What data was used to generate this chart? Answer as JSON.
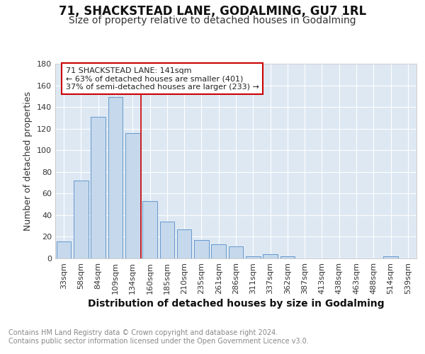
{
  "title": "71, SHACKSTEAD LANE, GODALMING, GU7 1RL",
  "subtitle": "Size of property relative to detached houses in Godalming",
  "xlabel": "Distribution of detached houses by size in Godalming",
  "ylabel": "Number of detached properties",
  "bar_labels": [
    "33sqm",
    "58sqm",
    "84sqm",
    "109sqm",
    "134sqm",
    "160sqm",
    "185sqm",
    "210sqm",
    "235sqm",
    "261sqm",
    "286sqm",
    "311sqm",
    "337sqm",
    "362sqm",
    "387sqm",
    "413sqm",
    "438sqm",
    "463sqm",
    "488sqm",
    "514sqm",
    "539sqm"
  ],
  "bar_values": [
    16,
    72,
    131,
    149,
    116,
    53,
    34,
    27,
    17,
    13,
    11,
    2,
    4,
    2,
    0,
    0,
    0,
    0,
    0,
    2,
    0
  ],
  "bar_color": "#c5d8ec",
  "bar_edge_color": "#6699cc",
  "figure_bg_color": "#ffffff",
  "plot_bg_color": "#dde8f3",
  "red_line_x": 4.5,
  "annotation_text": "71 SHACKSTEAD LANE: 141sqm\n← 63% of detached houses are smaller (401)\n37% of semi-detached houses are larger (233) →",
  "annotation_box_facecolor": "#ffffff",
  "annotation_box_edgecolor": "#cc0000",
  "ylim": [
    0,
    180
  ],
  "yticks": [
    0,
    20,
    40,
    60,
    80,
    100,
    120,
    140,
    160,
    180
  ],
  "footer_text": "Contains HM Land Registry data © Crown copyright and database right 2024.\nContains public sector information licensed under the Open Government Licence v3.0.",
  "title_fontsize": 12,
  "subtitle_fontsize": 10,
  "annotation_fontsize": 8,
  "ylabel_fontsize": 9,
  "xlabel_fontsize": 10,
  "footer_fontsize": 7,
  "tick_label_fontsize": 8
}
